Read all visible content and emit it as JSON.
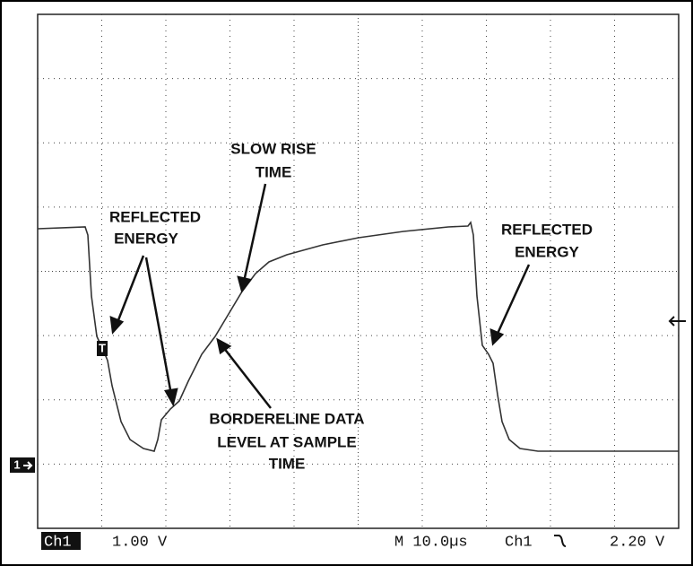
{
  "annotations": [
    {
      "lines": [
        "REFLECTED",
        "ENERGY"
      ]
    },
    {
      "lines": [
        "SLOW RISE",
        "TIME"
      ]
    },
    {
      "lines": [
        "REFLECTED",
        "ENERGY"
      ]
    },
    {
      "lines": [
        "BORDERELINE DATA",
        "LEVEL AT SAMPLE",
        "TIME"
      ]
    }
  ],
  "markers": {
    "channel": "1",
    "trigger_point": "T"
  },
  "status_bar": {
    "channel": "Ch1",
    "scale": "1.00 V",
    "timebase": "M 10.0µs",
    "trigger_channel": "Ch1",
    "trigger_level": "2.20 V"
  }
}
